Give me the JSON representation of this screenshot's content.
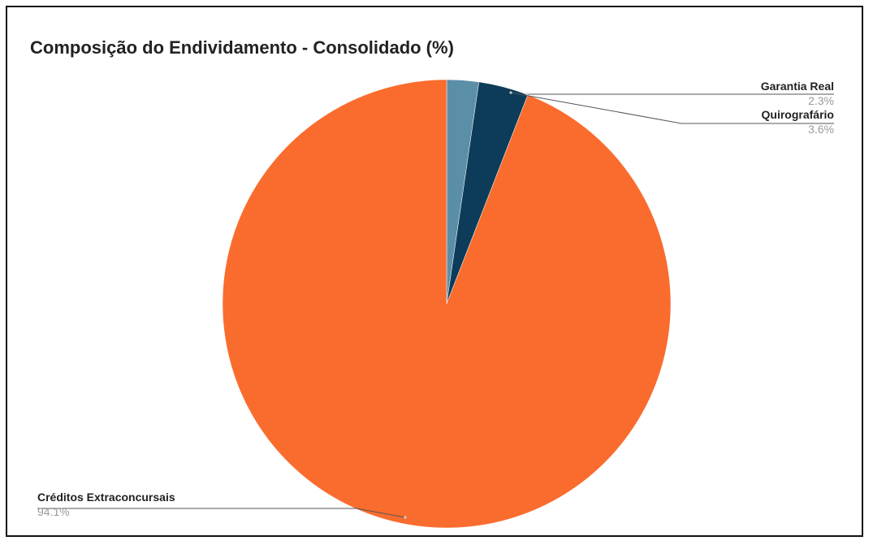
{
  "chart_data": {
    "type": "pie",
    "title": "Composição do Endividamento - Consolidado (%)",
    "slices": [
      {
        "label": "Garantia Real",
        "value": 2.3,
        "value_label": "2.3%",
        "color": "#5b8fa8"
      },
      {
        "label": "Quirografário",
        "value": 3.6,
        "value_label": "3.6%",
        "color": "#0d3c5a"
      },
      {
        "label": "Créditos Extraconcursais",
        "value": 94.1,
        "value_label": "94.1%",
        "color": "#fa6c2d"
      }
    ],
    "start_angle_deg": 0,
    "direction": "clockwise",
    "legend": "none",
    "label_style": "outside labels with leader lines"
  }
}
